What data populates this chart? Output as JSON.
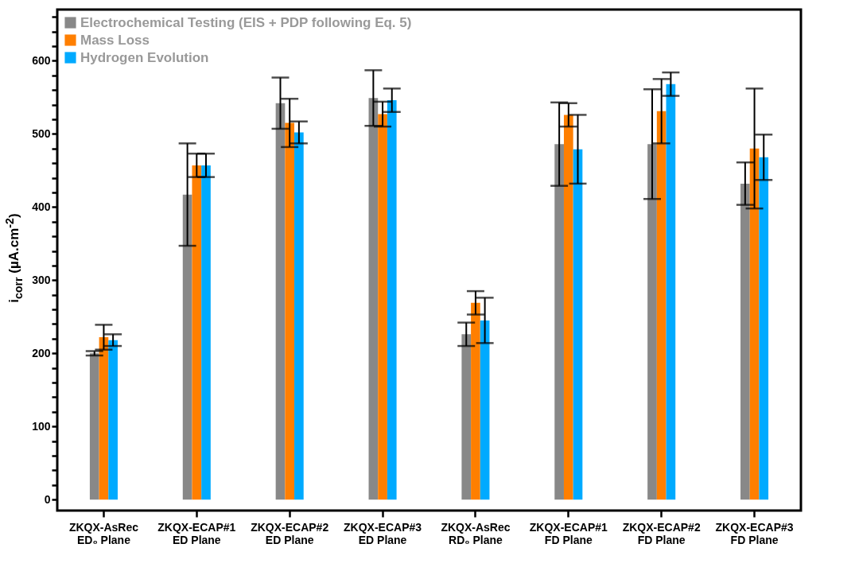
{
  "chart_data": {
    "type": "bar",
    "ylabel": "i$_{corr}$ (µA.cm$^{-2}$)",
    "categories": [
      "ZKQX-AsRec\nED₀ Plane",
      "ZKQX-ECAP#1\nED Plane",
      "ZKQX-ECAP#2\nED Plane",
      "ZKQX-ECAP#3\nED Plane",
      "ZKQX-AsRec\nRD₀ Plane",
      "ZKQX-ECAP#1\nFD Plane",
      "ZKQX-ECAP#2\nFD Plane",
      "ZKQX-ECAP#3\nFD Plane"
    ],
    "series": [
      {
        "name": "Electrochemical Testing (EIS + PDP following Eq. 5)",
        "color": "#888888",
        "values": [
          200,
          417,
          542,
          549,
          226,
          486,
          486,
          432
        ],
        "errors": [
          3,
          70,
          35,
          38,
          16,
          57,
          75,
          29
        ]
      },
      {
        "name": "Mass Loss",
        "color": "#ff7f00",
        "values": [
          222,
          457,
          515,
          527,
          269,
          526,
          531,
          480
        ],
        "errors": [
          17,
          16,
          33,
          17,
          16,
          16,
          44,
          82
        ]
      },
      {
        "name": "Hydrogen Evolution",
        "color": "#00aaff",
        "values": [
          218,
          457,
          502,
          546,
          245,
          479,
          568,
          468
        ],
        "errors": [
          8,
          16,
          15,
          16,
          31,
          47,
          16,
          31
        ]
      }
    ],
    "ylim": [
      -15,
      670
    ],
    "yticks": [
      0,
      {
        "value": 20,
        "label": null
      },
      {
        "value": 40,
        "label": null
      },
      {
        "value": 60,
        "label": null
      },
      {
        "value": 80,
        "label": null
      },
      100,
      {
        "value": 120,
        "label": null
      },
      {
        "value": 140,
        "label": null
      },
      {
        "value": 160,
        "label": null
      },
      {
        "value": 180,
        "label": null
      },
      200,
      {
        "value": 220,
        "label": null
      },
      {
        "value": 240,
        "label": null
      },
      {
        "value": 260,
        "label": null
      },
      {
        "value": 280,
        "label": null
      },
      300,
      {
        "value": 320,
        "label": null
      },
      {
        "value": 340,
        "label": null
      },
      {
        "value": 360,
        "label": null
      },
      {
        "value": 380,
        "label": null
      },
      400,
      {
        "value": 420,
        "label": null
      },
      {
        "value": 440,
        "label": null
      },
      {
        "value": 460,
        "label": null
      },
      {
        "value": 480,
        "label": null
      },
      500,
      {
        "value": 520,
        "label": null
      },
      {
        "value": 540,
        "label": null
      },
      {
        "value": 560,
        "label": null
      },
      {
        "value": 580,
        "label": null
      },
      600,
      {
        "value": 620,
        "label": null
      },
      {
        "value": 640,
        "label": null
      },
      {
        "value": 660,
        "label": null
      }
    ],
    "grid": false,
    "legend": "top left"
  }
}
